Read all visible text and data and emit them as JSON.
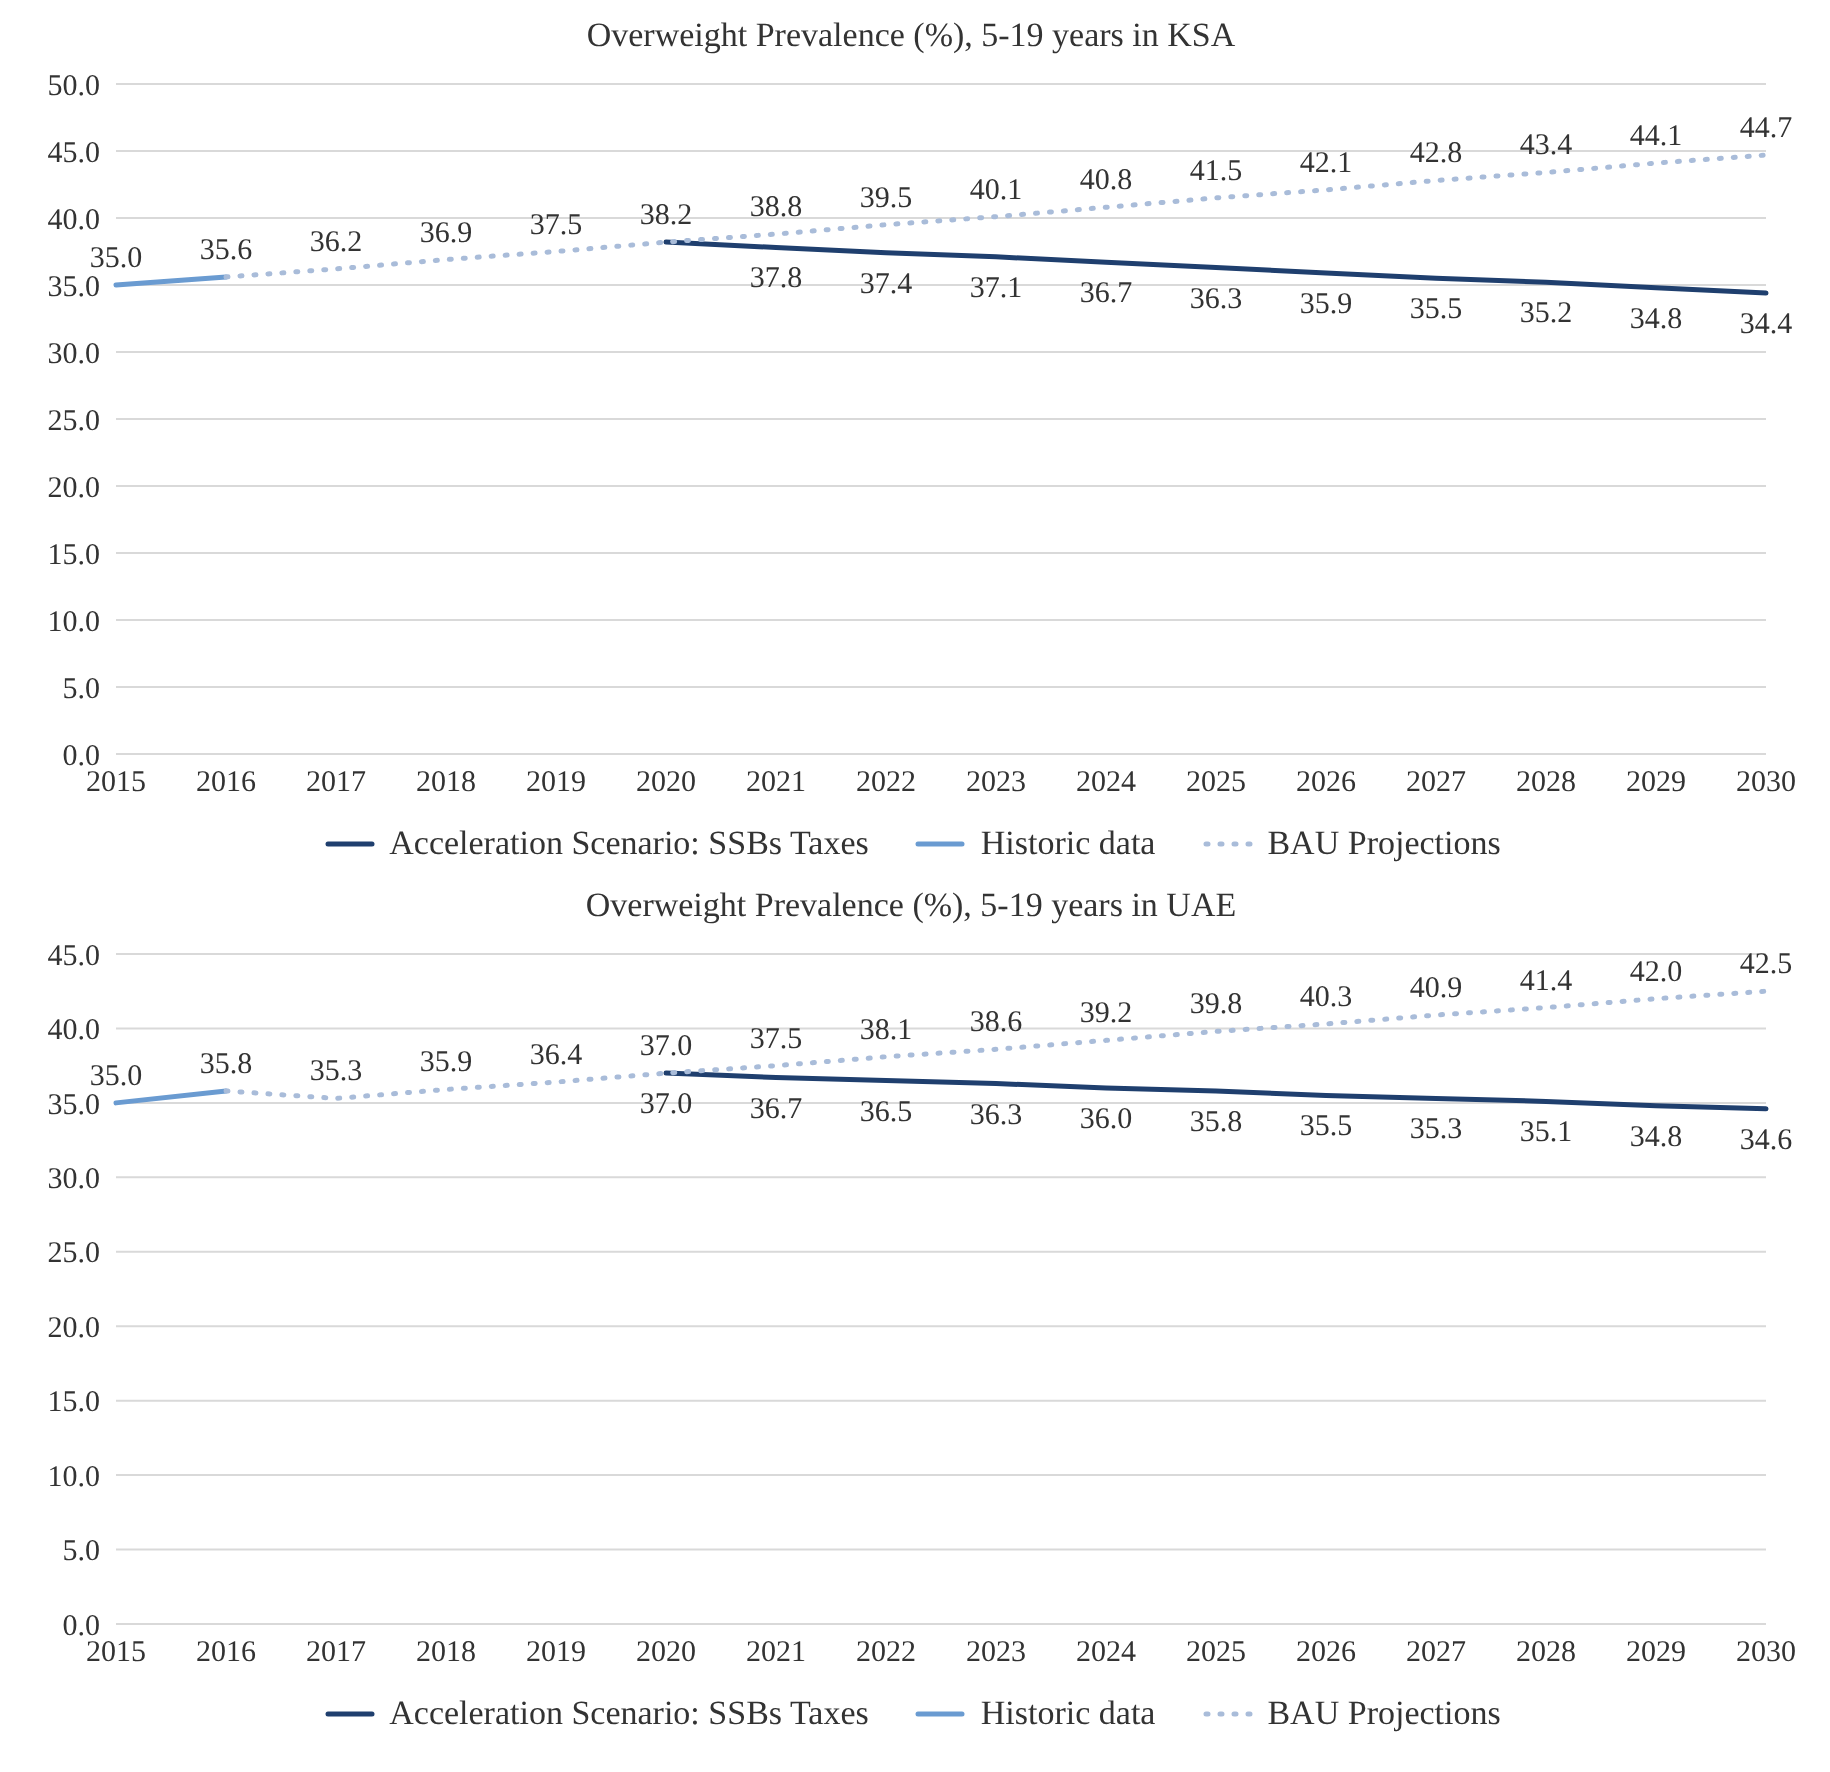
{
  "chart_data": [
    {
      "type": "line",
      "title": "Overweight Prevalence (%), 5-19 years in KSA",
      "categories": [
        "2015",
        "2016",
        "2017",
        "2018",
        "2019",
        "2020",
        "2021",
        "2022",
        "2023",
        "2024",
        "2025",
        "2026",
        "2027",
        "2028",
        "2029",
        "2030"
      ],
      "series": [
        {
          "name": "Acceleration Scenario: SSBs Taxes",
          "color": "#1f3f6e",
          "line_style": "solid",
          "values": [
            null,
            null,
            null,
            null,
            null,
            38.2,
            37.8,
            37.4,
            37.1,
            36.7,
            36.3,
            35.9,
            35.5,
            35.2,
            34.8,
            34.4
          ],
          "value_labels": [
            null,
            null,
            null,
            null,
            null,
            null,
            "37.8",
            "37.4",
            "37.1",
            "36.7",
            "36.3",
            "35.9",
            "35.5",
            "35.2",
            "34.8",
            "34.4"
          ]
        },
        {
          "name": "Historic data",
          "color": "#6a9bd1",
          "line_style": "solid",
          "values": [
            35.0,
            35.6,
            null,
            null,
            null,
            null,
            null,
            null,
            null,
            null,
            null,
            null,
            null,
            null,
            null,
            null
          ],
          "value_labels": [
            "35.0",
            "35.6",
            null,
            null,
            null,
            null,
            null,
            null,
            null,
            null,
            null,
            null,
            null,
            null,
            null,
            null
          ]
        },
        {
          "name": "BAU Projections",
          "color": "#a9bcd9",
          "line_style": "dotted",
          "values": [
            null,
            35.6,
            36.2,
            36.9,
            37.5,
            38.2,
            38.8,
            39.5,
            40.1,
            40.8,
            41.5,
            42.1,
            42.8,
            43.4,
            44.1,
            44.7
          ],
          "value_labels": [
            null,
            null,
            "36.2",
            "36.9",
            "37.5",
            "38.2",
            "38.8",
            "39.5",
            "40.1",
            "40.8",
            "41.5",
            "42.1",
            "42.8",
            "43.4",
            "44.1",
            "44.7"
          ]
        }
      ],
      "ylim": [
        0,
        50
      ],
      "yticks": [
        {
          "value": 0,
          "label": "0.0"
        },
        {
          "value": 5,
          "label": "5.0"
        },
        {
          "value": 10,
          "label": "10.0"
        },
        {
          "value": 15,
          "label": "15.0"
        },
        {
          "value": 20,
          "label": "20.0"
        },
        {
          "value": 25,
          "label": "25.0"
        },
        {
          "value": 30,
          "label": "30.0"
        },
        {
          "value": 35,
          "label": "35.0"
        },
        {
          "value": 40,
          "label": "40.0"
        },
        {
          "value": 45,
          "label": "45.0"
        },
        {
          "value": 50,
          "label": "50.0"
        }
      ],
      "grid": "y",
      "legend": "bottom"
    },
    {
      "type": "line",
      "title": "Overweight Prevalence (%), 5-19 years in UAE",
      "categories": [
        "2015",
        "2016",
        "2017",
        "2018",
        "2019",
        "2020",
        "2021",
        "2022",
        "2023",
        "2024",
        "2025",
        "2026",
        "2027",
        "2028",
        "2029",
        "2030"
      ],
      "series": [
        {
          "name": "Acceleration Scenario: SSBs Taxes",
          "color": "#1f3f6e",
          "line_style": "solid",
          "values": [
            null,
            null,
            null,
            null,
            null,
            37.0,
            36.7,
            36.5,
            36.3,
            36.0,
            35.8,
            35.5,
            35.3,
            35.1,
            34.8,
            34.6
          ],
          "value_labels": [
            null,
            null,
            null,
            null,
            null,
            "37.0",
            "36.7",
            "36.5",
            "36.3",
            "36.0",
            "35.8",
            "35.5",
            "35.3",
            "35.1",
            "34.8",
            "34.6"
          ]
        },
        {
          "name": "Historic data",
          "color": "#6a9bd1",
          "line_style": "solid",
          "values": [
            35.0,
            35.8,
            null,
            null,
            null,
            null,
            null,
            null,
            null,
            null,
            null,
            null,
            null,
            null,
            null,
            null
          ],
          "value_labels": [
            "35.0",
            "35.8",
            null,
            null,
            null,
            null,
            null,
            null,
            null,
            null,
            null,
            null,
            null,
            null,
            null,
            null
          ]
        },
        {
          "name": "BAU Projections",
          "color": "#a9bcd9",
          "line_style": "dotted",
          "values": [
            null,
            35.8,
            35.3,
            35.9,
            36.4,
            37.0,
            37.5,
            38.1,
            38.6,
            39.2,
            39.8,
            40.3,
            40.9,
            41.4,
            42.0,
            42.5
          ],
          "value_labels": [
            null,
            null,
            "35.3",
            "35.9",
            "36.4",
            "37.0",
            "37.5",
            "38.1",
            "38.6",
            "39.2",
            "39.8",
            "40.3",
            "40.9",
            "41.4",
            "42.0",
            "42.5"
          ]
        }
      ],
      "ylim": [
        0,
        45
      ],
      "yticks": [
        {
          "value": 0,
          "label": "0.0"
        },
        {
          "value": 5,
          "label": "5.0"
        },
        {
          "value": 10,
          "label": "10.0"
        },
        {
          "value": 15,
          "label": "15.0"
        },
        {
          "value": 20,
          "label": "20.0"
        },
        {
          "value": 25,
          "label": "25.0"
        },
        {
          "value": 30,
          "label": "30.0"
        },
        {
          "value": 35,
          "label": "35.0"
        },
        {
          "value": 40,
          "label": "40.0"
        },
        {
          "value": 45,
          "label": "45.0"
        }
      ],
      "grid": "y",
      "legend": "bottom"
    }
  ]
}
